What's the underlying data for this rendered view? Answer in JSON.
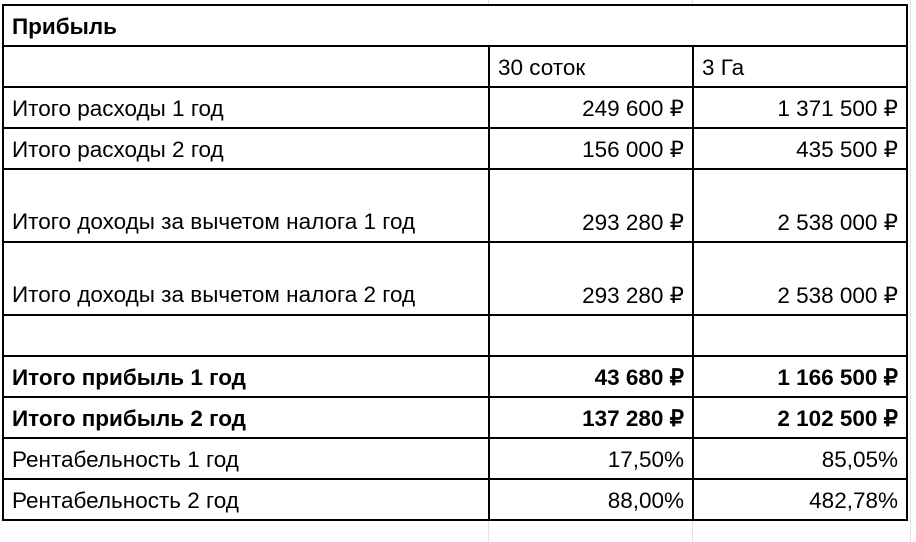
{
  "title": "Прибыль",
  "columns": [
    "",
    "30 соток",
    "3 Га"
  ],
  "rows": [
    {
      "label": "Итого расходы 1 год",
      "a": "249 600 ₽",
      "b": "1 371 500 ₽",
      "bold": false
    },
    {
      "label": "Итого расходы 2 год",
      "a": "156 000 ₽",
      "b": "435 500 ₽",
      "bold": false
    },
    {
      "label": "Итого доходы за вычетом налога 1 год",
      "a": "293 280 ₽",
      "b": "2 538 000 ₽",
      "bold": false
    },
    {
      "label": "Итого доходы за вычетом налога 2 год",
      "a": "293 280 ₽",
      "b": "2 538 000 ₽",
      "bold": false
    },
    {
      "label": "",
      "a": "",
      "b": "",
      "bold": false
    },
    {
      "label": "Итого прибыль 1 год",
      "a": "43 680 ₽",
      "b": "1 166 500 ₽",
      "bold": true
    },
    {
      "label": "Итого прибыль 2 год",
      "a": "137 280 ₽",
      "b": "2 102 500 ₽",
      "bold": true
    },
    {
      "label": "Рентабельность 1 год",
      "a": "17,50%",
      "b": "85,05%",
      "bold": false
    },
    {
      "label": "Рентабельность 2 год",
      "a": "88,00%",
      "b": "482,78%",
      "bold": false
    }
  ]
}
